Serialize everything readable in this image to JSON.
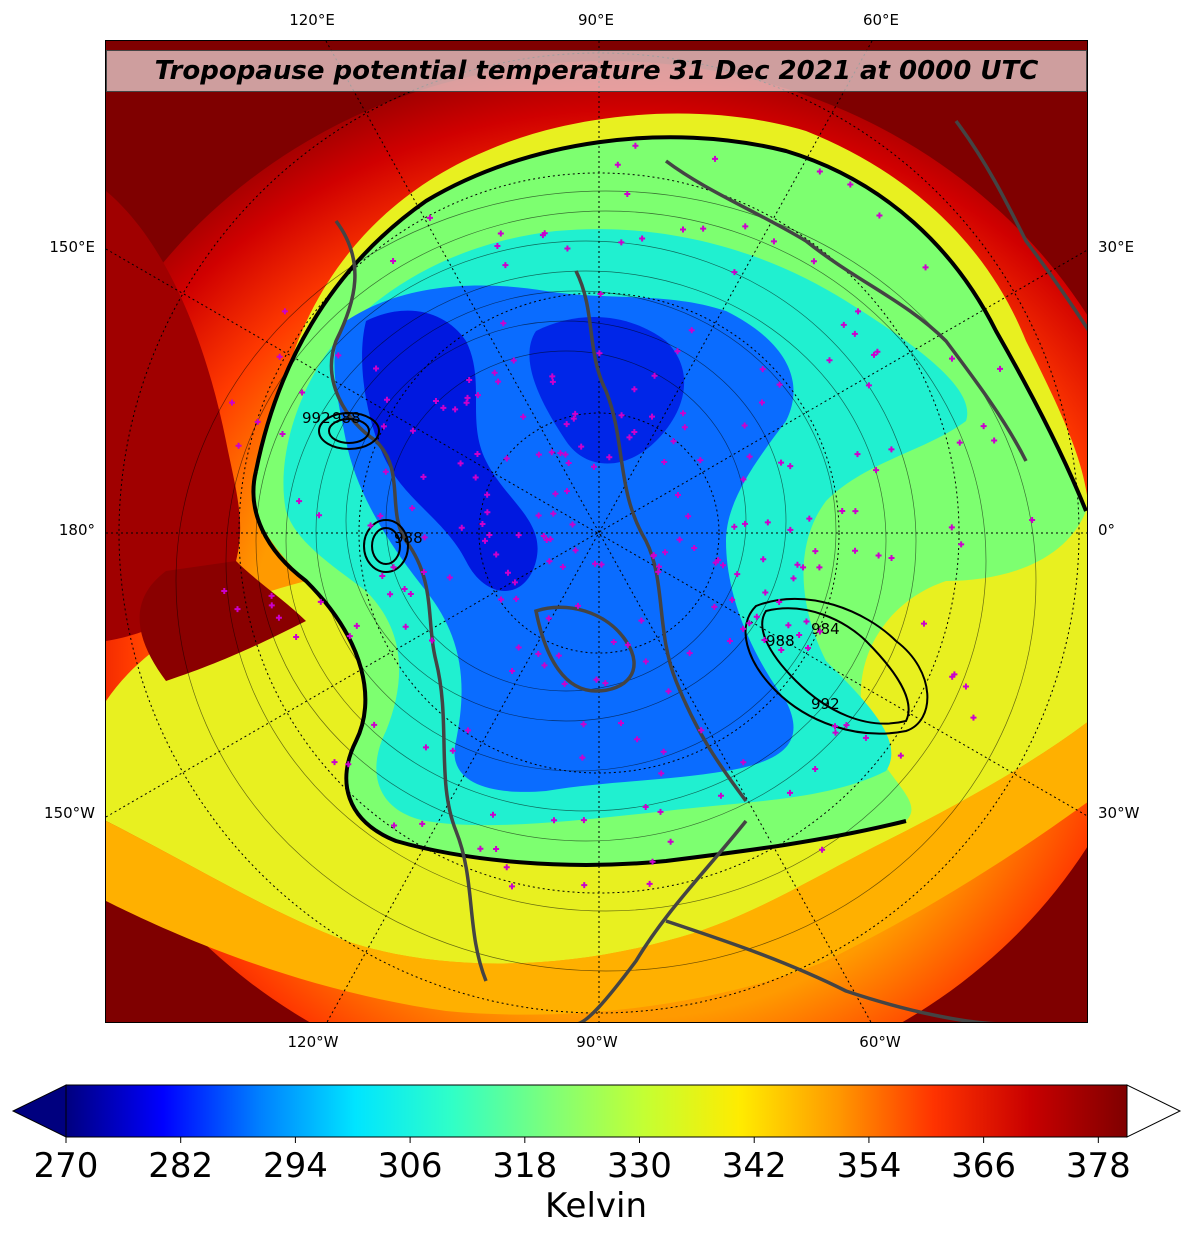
{
  "title": "Tropopause potential temperature 31 Dec 2021 at 0000 UTC",
  "axes": {
    "top_lon": [
      "120°E",
      "90°E",
      "60°E"
    ],
    "bottom_lon": [
      "120°W",
      "90°W",
      "60°W"
    ],
    "left_lat": [
      "150°E",
      "180°",
      "150°W"
    ],
    "right_lat": [
      "30°E",
      "0°",
      "30°W"
    ]
  },
  "contour_labels": [
    "992",
    "988",
    "988",
    "984",
    "988",
    "992"
  ],
  "colorbar": {
    "ticks": [
      "270",
      "282",
      "294",
      "306",
      "318",
      "330",
      "342",
      "354",
      "366",
      "378"
    ],
    "label": "Kelvin",
    "min": 270,
    "max": 381,
    "colormap": [
      "#00007f",
      "#0000ff",
      "#007fff",
      "#00e5ff",
      "#30ffc7",
      "#7dff7a",
      "#c4ff33",
      "#ffeb00",
      "#ff9900",
      "#ff3300",
      "#c80000",
      "#7f0000"
    ]
  },
  "colors": {
    "background_warm": "#7a0000",
    "station_marker": "#cc00cc",
    "coastline": "#444444"
  }
}
